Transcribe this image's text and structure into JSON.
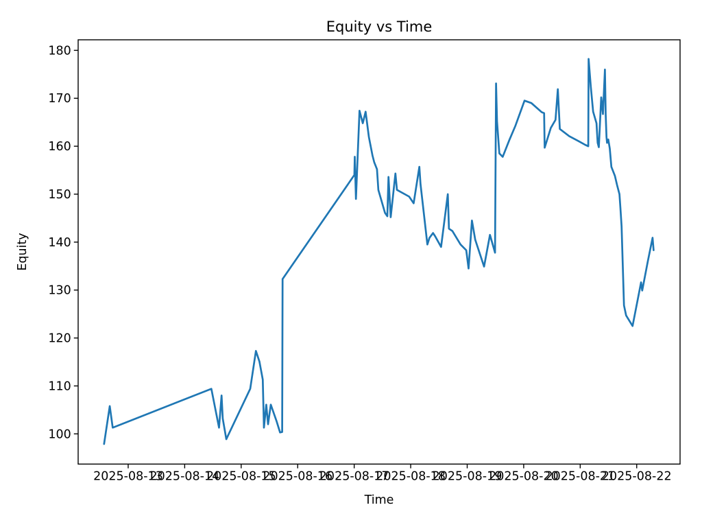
{
  "figure": {
    "background": "#ffffff"
  },
  "chart_data": {
    "type": "line",
    "title": "Equity vs Time",
    "xlabel": "Time",
    "ylabel": "Equity",
    "grid": false,
    "legend": null,
    "line_color": "#1f77b4",
    "line_width": 2.7,
    "spine_color": "#000000",
    "x_tick_labels": [
      "2025-08-13",
      "2025-08-14",
      "2025-08-15",
      "2025-08-16",
      "2025-08-17",
      "2025-08-18",
      "2025-08-19",
      "2025-08-20",
      "2025-08-21",
      "2025-08-22"
    ],
    "y_ticks": [
      100,
      110,
      120,
      130,
      140,
      150,
      160,
      170,
      180
    ],
    "xlim": [
      "2025-08-12 02:45",
      "2025-08-22 18:25"
    ],
    "ylim": [
      93.7,
      182.2
    ],
    "series": [
      {
        "name": "equity",
        "points": [
          [
            "2025-08-12 13:45",
            97.9
          ],
          [
            "2025-08-12 16:10",
            105.8
          ],
          [
            "2025-08-12 17:25",
            101.3
          ],
          [
            "2025-08-14 11:20",
            109.4
          ],
          [
            "2025-08-14 14:35",
            101.3
          ],
          [
            "2025-08-14 15:40",
            108.0
          ],
          [
            "2025-08-14 16:10",
            103.2
          ],
          [
            "2025-08-14 17:40",
            98.9
          ],
          [
            "2025-08-15 03:50",
            109.4
          ],
          [
            "2025-08-15 06:15",
            117.3
          ],
          [
            "2025-08-15 07:45",
            115.1
          ],
          [
            "2025-08-15 09:10",
            111.3
          ],
          [
            "2025-08-15 09:40",
            101.3
          ],
          [
            "2025-08-15 10:40",
            106.1
          ],
          [
            "2025-08-15 11:25",
            102.0
          ],
          [
            "2025-08-15 12:35",
            106.1
          ],
          [
            "2025-08-15 15:00",
            102.7
          ],
          [
            "2025-08-15 16:30",
            100.3
          ],
          [
            "2025-08-15 17:25",
            100.4
          ],
          [
            "2025-08-15 17:35",
            132.3
          ],
          [
            "2025-08-17 00:05",
            154.0
          ],
          [
            "2025-08-17 00:15",
            157.8
          ],
          [
            "2025-08-17 00:45",
            149.0
          ],
          [
            "2025-08-17 02:15",
            167.4
          ],
          [
            "2025-08-17 03:40",
            164.8
          ],
          [
            "2025-08-17 04:50",
            167.2
          ],
          [
            "2025-08-17 06:15",
            161.9
          ],
          [
            "2025-08-17 07:45",
            158.1
          ],
          [
            "2025-08-17 08:30",
            156.7
          ],
          [
            "2025-08-17 09:40",
            155.2
          ],
          [
            "2025-08-17 10:15",
            150.9
          ],
          [
            "2025-08-17 13:05",
            146.1
          ],
          [
            "2025-08-17 14:05",
            145.4
          ],
          [
            "2025-08-17 14:35",
            153.6
          ],
          [
            "2025-08-17 15:30",
            145.2
          ],
          [
            "2025-08-17 17:30",
            154.3
          ],
          [
            "2025-08-17 18:10",
            150.9
          ],
          [
            "2025-08-17 23:20",
            149.5
          ],
          [
            "2025-08-18 01:15",
            148.1
          ],
          [
            "2025-08-18 03:40",
            155.7
          ],
          [
            "2025-08-18 04:10",
            152.1
          ],
          [
            "2025-08-18 07:05",
            139.5
          ],
          [
            "2025-08-18 08:00",
            140.9
          ],
          [
            "2025-08-18 09:30",
            141.9
          ],
          [
            "2025-08-18 10:25",
            141.2
          ],
          [
            "2025-08-18 12:55",
            139.0
          ],
          [
            "2025-08-18 15:45",
            150.0
          ],
          [
            "2025-08-18 16:15",
            142.8
          ],
          [
            "2025-08-18 17:45",
            142.3
          ],
          [
            "2025-08-18 21:10",
            139.5
          ],
          [
            "2025-08-18 23:35",
            138.3
          ],
          [
            "2025-08-19 00:35",
            134.5
          ],
          [
            "2025-08-19 02:00",
            144.5
          ],
          [
            "2025-08-19 03:25",
            140.5
          ],
          [
            "2025-08-19 07:10",
            134.9
          ],
          [
            "2025-08-19 09:40",
            141.5
          ],
          [
            "2025-08-19 11:50",
            137.8
          ],
          [
            "2025-08-19 12:15",
            173.1
          ],
          [
            "2025-08-19 12:40",
            165.2
          ],
          [
            "2025-08-19 13:40",
            158.5
          ],
          [
            "2025-08-19 15:05",
            157.8
          ],
          [
            "2025-08-19 18:00",
            161.4
          ],
          [
            "2025-08-19 20:30",
            164.3
          ],
          [
            "2025-08-20 00:20",
            169.5
          ],
          [
            "2025-08-20 03:15",
            169.0
          ],
          [
            "2025-08-20 07:40",
            167.1
          ],
          [
            "2025-08-20 08:40",
            166.9
          ],
          [
            "2025-08-20 08:55",
            159.7
          ],
          [
            "2025-08-20 11:30",
            163.8
          ],
          [
            "2025-08-20 13:30",
            165.5
          ],
          [
            "2025-08-20 14:30",
            171.9
          ],
          [
            "2025-08-20 15:20",
            163.6
          ],
          [
            "2025-08-20 19:20",
            162.1
          ],
          [
            "2025-08-20 23:10",
            161.1
          ],
          [
            "2025-08-21 02:05",
            160.3
          ],
          [
            "2025-08-21 03:25",
            160.0
          ],
          [
            "2025-08-21 03:35",
            178.2
          ],
          [
            "2025-08-21 04:30",
            172.4
          ],
          [
            "2025-08-21 05:30",
            167.2
          ],
          [
            "2025-08-21 06:55",
            164.8
          ],
          [
            "2025-08-21 07:25",
            160.7
          ],
          [
            "2025-08-21 07:55",
            159.8
          ],
          [
            "2025-08-21 08:55",
            170.2
          ],
          [
            "2025-08-21 09:40",
            166.7
          ],
          [
            "2025-08-21 10:30",
            176.0
          ],
          [
            "2025-08-21 10:50",
            166.7
          ],
          [
            "2025-08-21 11:10",
            161.9
          ],
          [
            "2025-08-21 11:25",
            160.7
          ],
          [
            "2025-08-21 11:55",
            161.4
          ],
          [
            "2025-08-21 12:35",
            159.5
          ],
          [
            "2025-08-21 13:15",
            155.7
          ],
          [
            "2025-08-21 14:45",
            153.8
          ],
          [
            "2025-08-21 15:40",
            151.9
          ],
          [
            "2025-08-21 16:40",
            150.0
          ],
          [
            "2025-08-21 17:05",
            147.1
          ],
          [
            "2025-08-21 17:35",
            143.3
          ],
          [
            "2025-08-21 18:35",
            126.8
          ],
          [
            "2025-08-21 19:30",
            124.7
          ],
          [
            "2025-08-21 22:15",
            122.5
          ],
          [
            "2025-08-22 00:25",
            128.0
          ],
          [
            "2025-08-22 01:50",
            131.6
          ],
          [
            "2025-08-22 02:20",
            129.9
          ],
          [
            "2025-08-22 04:45",
            136.1
          ],
          [
            "2025-08-22 06:45",
            140.9
          ],
          [
            "2025-08-22 07:10",
            138.3
          ]
        ]
      }
    ]
  }
}
